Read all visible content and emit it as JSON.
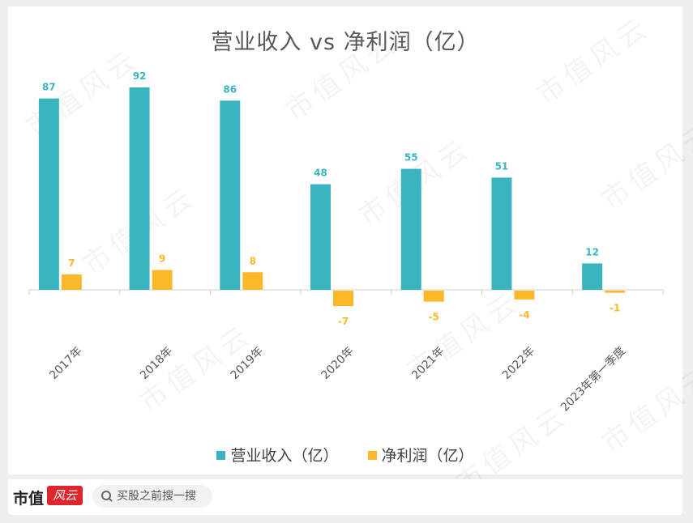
{
  "watermark": "市值风云",
  "chart_data": {
    "type": "bar",
    "title": "营业收入 vs 净利润（亿）",
    "categories": [
      "2017年",
      "2018年",
      "2019年",
      "2020年",
      "2021年",
      "2022年",
      "2023年第一季度"
    ],
    "series": [
      {
        "name": "营业收入（亿）",
        "color": "#3ab5c0",
        "values": [
          87,
          92,
          86,
          48,
          55,
          51,
          12
        ]
      },
      {
        "name": "净利润（亿）",
        "color": "#fbb829",
        "values": [
          7,
          9,
          8,
          -7,
          -5,
          -4,
          -1
        ]
      }
    ],
    "ylim": [
      -10,
      92
    ],
    "grid": false,
    "legend": "bottom",
    "data_labels": true
  },
  "footer": {
    "brand": "市值",
    "brand_badge": "风云",
    "search_placeholder": "买股之前搜一搜",
    "search_icon": "search-icon"
  }
}
